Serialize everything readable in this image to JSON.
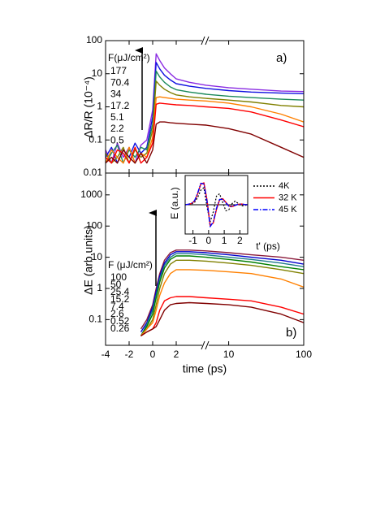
{
  "chart_data": [
    {
      "type": "line",
      "panel_label": "a)",
      "y_label": "ΔR/R (10⁻⁴)",
      "legend_title": "F(μJ/cm²)",
      "ylog": true,
      "ylim": [
        0.01,
        100
      ],
      "yticks": [
        0.01,
        0.1,
        1,
        10,
        100
      ],
      "xlim": [
        -4,
        100
      ],
      "xticks": [
        -4,
        -2,
        0,
        2,
        10,
        100
      ],
      "x": [
        -4,
        -3.5,
        -3,
        -2.5,
        -2,
        -1.5,
        -1,
        -0.5,
        0,
        0.3,
        0.6,
        1,
        1.5,
        2,
        3,
        5,
        10,
        20,
        50,
        100
      ],
      "series": [
        {
          "name": "177",
          "color": "#8a2be2",
          "values": [
            0.05,
            0.02,
            0.08,
            0.03,
            0.06,
            0.02,
            0.07,
            0.1,
            0.8,
            40,
            25,
            15,
            10,
            7,
            5.5,
            4.5,
            3.8,
            3.4,
            3.0,
            2.9
          ]
        },
        {
          "name": "70.4",
          "color": "#1010e0",
          "values": [
            0.03,
            0.06,
            0.02,
            0.05,
            0.03,
            0.08,
            0.04,
            0.06,
            0.5,
            22,
            14,
            9,
            6.5,
            5,
            4.2,
            3.6,
            3.1,
            2.8,
            2.6,
            2.5
          ]
        },
        {
          "name": "34",
          "color": "#1a8a5a",
          "values": [
            0.02,
            0.04,
            0.07,
            0.02,
            0.05,
            0.03,
            0.06,
            0.05,
            0.3,
            12,
            8,
            5.5,
            4,
            3.3,
            2.8,
            2.4,
            2.1,
            1.9,
            1.7,
            1.6
          ]
        },
        {
          "name": "17.2",
          "color": "#808000",
          "values": [
            0.04,
            0.02,
            0.03,
            0.06,
            0.02,
            0.05,
            0.03,
            0.04,
            0.2,
            6,
            4.5,
            3.4,
            2.7,
            2.3,
            2,
            1.8,
            1.6,
            1.4,
            1.1,
            1.0
          ]
        },
        {
          "name": "5.1",
          "color": "#ff8000",
          "values": [
            0.02,
            0.05,
            0.03,
            0.02,
            0.06,
            0.02,
            0.04,
            0.03,
            0.12,
            1.9,
            2.0,
            1.9,
            1.8,
            1.7,
            1.6,
            1.5,
            1.3,
            1.0,
            0.6,
            0.35
          ]
        },
        {
          "name": "2.2",
          "color": "#ff0000",
          "values": [
            0.03,
            0.02,
            0.05,
            0.04,
            0.02,
            0.06,
            0.02,
            0.03,
            0.08,
            1.2,
            1.3,
            1.25,
            1.2,
            1.15,
            1.1,
            1.0,
            0.9,
            0.7,
            0.4,
            0.25
          ]
        },
        {
          "name": "0.5",
          "color": "#800000",
          "values": [
            0.02,
            0.03,
            0.02,
            0.05,
            0.03,
            0.02,
            0.04,
            0.02,
            0.05,
            0.3,
            0.35,
            0.35,
            0.33,
            0.32,
            0.3,
            0.28,
            0.22,
            0.15,
            0.06,
            0.03
          ]
        }
      ]
    },
    {
      "type": "line",
      "panel_label": "b)",
      "y_label": "ΔE (arb.units)",
      "x_label": "time (ps)",
      "legend_title": "F (μJ/cm²)",
      "ylog": true,
      "ylim": [
        0.015,
        5000
      ],
      "yticks": [
        0.1,
        1,
        10,
        100,
        1000
      ],
      "xlim": [
        -4,
        100
      ],
      "xticks": [
        -4,
        -2,
        0,
        2,
        10,
        100
      ],
      "x": [
        -4,
        -3.5,
        -3,
        -2.5,
        -2,
        -1.5,
        -1,
        -0.5,
        0,
        0.3,
        0.6,
        1,
        1.5,
        2,
        3,
        5,
        10,
        20,
        50,
        100
      ],
      "series": [
        {
          "name": "100",
          "color": "#8b1a3a",
          "values": [
            null,
            null,
            null,
            null,
            null,
            null,
            0.05,
            0.1,
            0.3,
            1,
            3,
            8,
            14,
            17,
            17,
            16,
            14,
            12,
            10,
            8
          ]
        },
        {
          "name": "50",
          "color": "#0000cc",
          "values": [
            null,
            null,
            null,
            null,
            null,
            null,
            0.04,
            0.08,
            0.25,
            0.8,
            2.5,
            6.5,
            12,
            15,
            15,
            14,
            12,
            10,
            8,
            6
          ]
        },
        {
          "name": "25.4",
          "color": "#1f7a8c",
          "values": [
            null,
            null,
            null,
            null,
            null,
            null,
            0.03,
            0.07,
            0.2,
            0.6,
            2,
            5.5,
            10,
            13,
            13,
            12,
            10,
            8.5,
            6.5,
            5
          ]
        },
        {
          "name": "15.2",
          "color": "#008000",
          "values": [
            null,
            null,
            null,
            null,
            null,
            null,
            0.03,
            0.06,
            0.15,
            0.5,
            1.6,
            4.5,
            8.5,
            11,
            11,
            10,
            8.5,
            7,
            5,
            4
          ]
        },
        {
          "name": "7.4",
          "color": "#808000",
          "values": [
            null,
            null,
            null,
            null,
            null,
            null,
            0.03,
            0.05,
            0.1,
            0.3,
            1,
            3,
            6,
            8,
            8,
            7.5,
            6.5,
            5.5,
            4,
            3
          ]
        },
        {
          "name": "2.6",
          "color": "#ff8000",
          "values": [
            null,
            null,
            null,
            null,
            null,
            null,
            0.03,
            0.05,
            0.08,
            0.2,
            0.6,
            1.5,
            3,
            4,
            4,
            3.8,
            3.4,
            3,
            2,
            1.1
          ]
        },
        {
          "name": "0.52",
          "color": "#ff0000",
          "values": [
            null,
            null,
            null,
            null,
            null,
            null,
            0.03,
            0.04,
            0.05,
            0.08,
            0.2,
            0.4,
            0.5,
            0.55,
            0.55,
            0.5,
            0.45,
            0.4,
            0.25,
            0.15
          ]
        },
        {
          "name": "0.26",
          "color": "#800000",
          "values": [
            null,
            null,
            null,
            null,
            null,
            null,
            0.03,
            0.04,
            0.05,
            0.06,
            0.1,
            0.2,
            0.3,
            0.33,
            0.35,
            0.33,
            0.3,
            0.25,
            0.15,
            0.08
          ]
        }
      ]
    },
    {
      "type": "line",
      "y_label": "E (a.u.)",
      "x_label": "t' (ps)",
      "ylog": false,
      "ylim": [
        -1.2,
        1.2
      ],
      "xlim": [
        -1.5,
        2.5
      ],
      "xticks": [
        -1,
        0,
        1,
        2
      ],
      "x": [
        -1.5,
        -1.3,
        -1.1,
        -0.9,
        -0.7,
        -0.5,
        -0.3,
        -0.1,
        0.1,
        0.3,
        0.5,
        0.7,
        0.9,
        1.1,
        1.3,
        1.5,
        1.7,
        1.9,
        2.1,
        2.3,
        2.5
      ],
      "series": [
        {
          "name": "4K",
          "color": "#000000",
          "style": "dotted",
          "values": [
            0,
            0.01,
            0.03,
            0.1,
            0.3,
            0.6,
            0.7,
            -0.1,
            -0.7,
            -0.3,
            0.35,
            0.45,
            0.1,
            -0.25,
            -0.2,
            0.05,
            0.15,
            0.05,
            -0.05,
            -0.03,
            0
          ]
        },
        {
          "name": "32 K",
          "color": "#ff0000",
          "style": "solid",
          "values": [
            0,
            0.02,
            0.05,
            0.15,
            0.45,
            0.85,
            0.9,
            0.2,
            -0.85,
            -0.75,
            -0.2,
            0.2,
            0.25,
            0.1,
            -0.05,
            -0.08,
            -0.03,
            0.02,
            0.03,
            0.01,
            0
          ]
        },
        {
          "name": "45 K",
          "color": "#0000ff",
          "style": "dashdot",
          "values": [
            0,
            0.02,
            0.06,
            0.17,
            0.48,
            0.88,
            0.85,
            0.15,
            -0.9,
            -0.7,
            -0.15,
            0.22,
            0.22,
            0.08,
            -0.06,
            -0.07,
            -0.02,
            0.02,
            0.03,
            0.01,
            0
          ]
        }
      ]
    }
  ]
}
